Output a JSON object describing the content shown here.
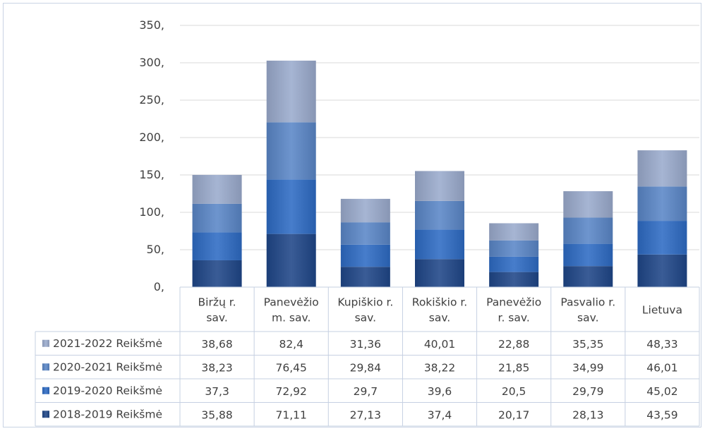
{
  "chart_data": {
    "type": "bar",
    "stacked": true,
    "title": "",
    "xlabel": "",
    "ylabel": "",
    "ylim": [
      0,
      350
    ],
    "yticks": [
      "0,",
      "50,",
      "100,",
      "150,",
      "200,",
      "250,",
      "300,",
      "350,"
    ],
    "grid": true,
    "legend": "data-table",
    "categories": [
      [
        "Biržų r.",
        "sav."
      ],
      [
        "Panevėžio",
        "m. sav."
      ],
      [
        "Kupiškio r.",
        "sav."
      ],
      [
        "Rokiškio r.",
        "sav."
      ],
      [
        "Panevėžio",
        "r. sav."
      ],
      [
        "Pasvalio r.",
        "sav."
      ],
      [
        "Lietuva"
      ]
    ],
    "series": [
      {
        "name": "2018-2019 Reikšmė",
        "color": "#1f4688",
        "values": [
          35.88,
          71.11,
          27.13,
          37.4,
          20.17,
          28.13,
          43.59
        ],
        "labels": [
          "35,88",
          "71,11",
          "27,13",
          "37,4",
          "20,17",
          "28,13",
          "43,59"
        ]
      },
      {
        "name": "2019-2020 Reikšmė",
        "color": "#2e6bc4",
        "values": [
          37.3,
          72.92,
          29.7,
          39.6,
          20.5,
          29.79,
          45.02
        ],
        "labels": [
          "37,3",
          "72,92",
          "29,7",
          "39,6",
          "20,5",
          "29,79",
          "45,02"
        ]
      },
      {
        "name": "2020-2021 Reikšmė",
        "color": "#5a86c7",
        "values": [
          38.23,
          76.45,
          29.84,
          38.22,
          21.85,
          34.99,
          46.01
        ],
        "labels": [
          "38,23",
          "76,45",
          "29,84",
          "38,22",
          "21,85",
          "34,99",
          "46,01"
        ]
      },
      {
        "name": "2021-2022 Reikšmė",
        "color": "#9aabcd",
        "values": [
          38.68,
          82.4,
          31.36,
          40.01,
          22.88,
          35.35,
          48.33
        ],
        "labels": [
          "38,68",
          "82,4",
          "31,36",
          "40,01",
          "22,88",
          "35,35",
          "48,33"
        ]
      }
    ]
  }
}
